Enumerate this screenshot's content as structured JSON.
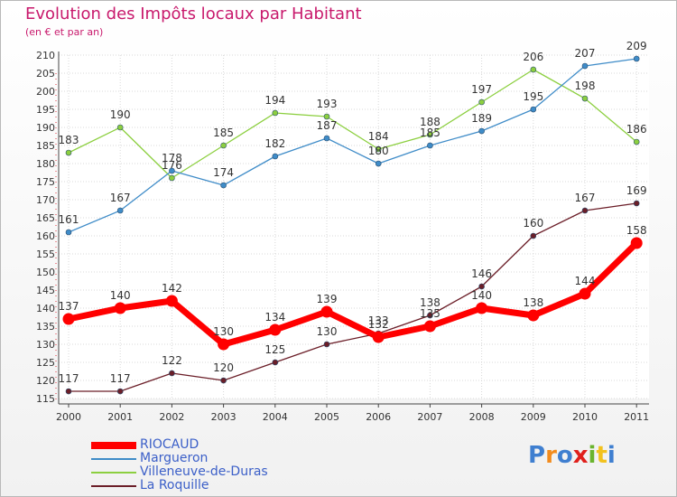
{
  "chart_data": {
    "type": "line",
    "title": "Evolution des Impôts locaux par Habitant",
    "subtitle": "(en € et par an)",
    "categories": [
      "2000",
      "2001",
      "2002",
      "2003",
      "2004",
      "2005",
      "2006",
      "2007",
      "2008",
      "2009",
      "2010",
      "2011"
    ],
    "ylim": [
      115,
      210
    ],
    "yticks": [
      115,
      120,
      125,
      130,
      135,
      140,
      145,
      150,
      155,
      160,
      165,
      170,
      175,
      180,
      185,
      190,
      195,
      200,
      205,
      210
    ],
    "grid": true,
    "legend_position": "bottom-left",
    "series": [
      {
        "name": "La Roquille",
        "color": "#6b1e28",
        "values": [
          117,
          117,
          122,
          120,
          125,
          130,
          133,
          138,
          146,
          160,
          167,
          169
        ],
        "labels": [
          "117",
          "117",
          "122",
          "120",
          "125",
          "130",
          "133",
          "138",
          "146",
          "160",
          "167",
          "169"
        ]
      },
      {
        "name": "Villeneuve-de-Duras",
        "color": "#8ccf3f",
        "values": [
          183,
          190,
          176,
          185,
          194,
          193,
          184,
          188,
          197,
          206,
          198,
          186
        ],
        "labels": [
          "183",
          "190",
          "176",
          "185",
          "194",
          "193",
          "184",
          "188",
          "197",
          "206",
          "198",
          "186"
        ]
      },
      {
        "name": "Margueron",
        "color": "#3f8cc8",
        "values": [
          161,
          167,
          178,
          174,
          182,
          187,
          180,
          185,
          189,
          195,
          207,
          209
        ],
        "labels": [
          "161",
          "167",
          "178",
          "174",
          "182",
          "187",
          "180",
          "185",
          "189",
          "195",
          "207",
          "209"
        ]
      },
      {
        "name": "RIOCAUD",
        "color": "#ff0000",
        "values": [
          137,
          140,
          142,
          130,
          134,
          139,
          132,
          135,
          140,
          138,
          144,
          158
        ],
        "labels": [
          "137",
          "140",
          "142",
          "130",
          "134",
          "139",
          "132",
          "135",
          "140",
          "138",
          "144",
          "158"
        ]
      }
    ]
  },
  "legend": [
    {
      "label": "RIOCAUD",
      "color": "#ff0000"
    },
    {
      "label": "Margueron",
      "color": "#3f8cc8"
    },
    {
      "label": "Villeneuve-de-Duras",
      "color": "#8ccf3f"
    },
    {
      "label": "La Roquille",
      "color": "#6b1e28"
    }
  ],
  "logo": {
    "text": "Proxiti",
    "colors": [
      "#3f7fd0",
      "#f28c1e",
      "#3f7fd0",
      "#e0201c",
      "#6ab42e",
      "#f2c21e",
      "#3f7fd0"
    ]
  }
}
